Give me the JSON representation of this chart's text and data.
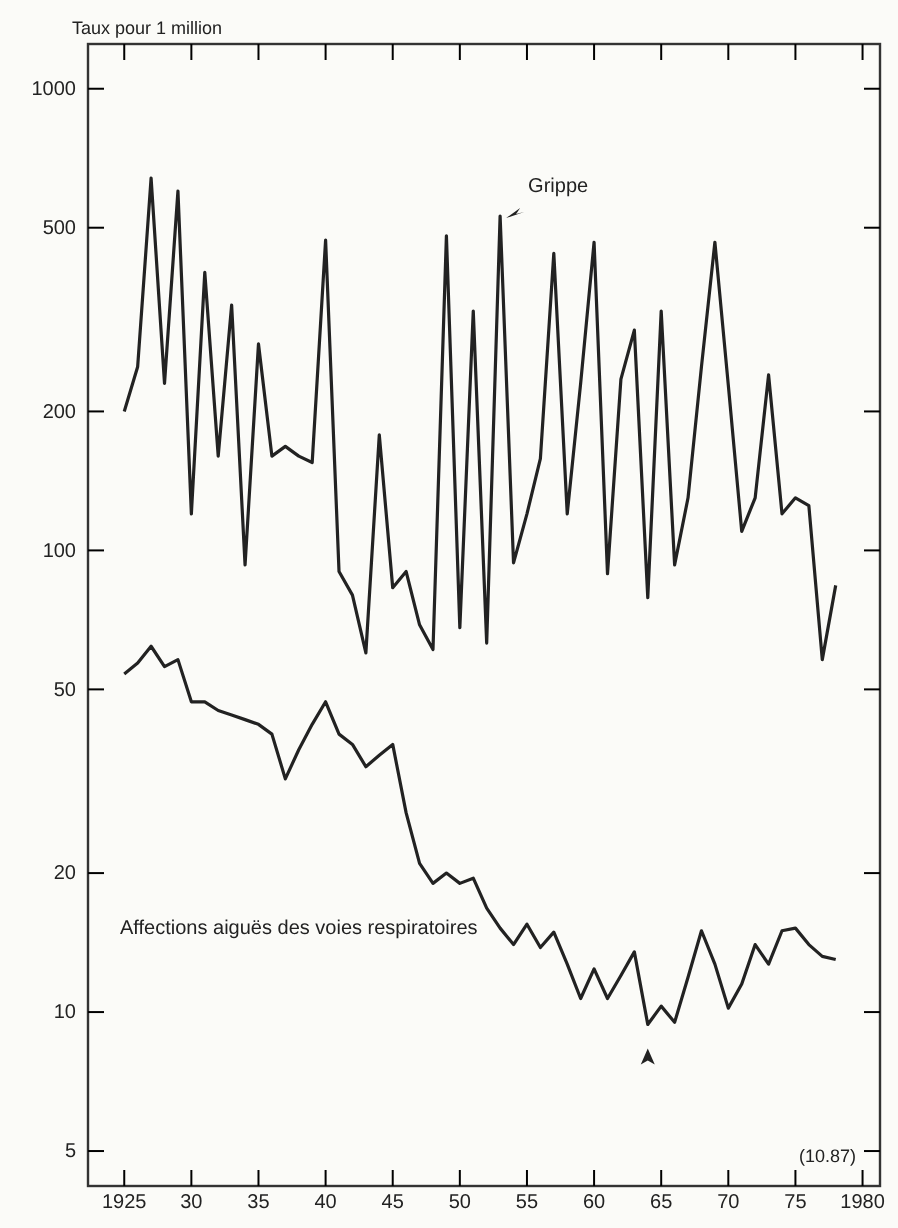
{
  "chart_data": {
    "type": "line",
    "ylabel": "Taux pour 1 million",
    "log": true,
    "x": [
      1925,
      1926,
      1927,
      1928,
      1929,
      1930,
      1931,
      1932,
      1933,
      1934,
      1935,
      1936,
      1937,
      1938,
      1939,
      1940,
      1941,
      1942,
      1943,
      1944,
      1945,
      1946,
      1947,
      1948,
      1949,
      1950,
      1951,
      1952,
      1953,
      1954,
      1955,
      1956,
      1957,
      1958,
      1959,
      1960,
      1961,
      1962,
      1963,
      1964,
      1965,
      1966,
      1967,
      1968,
      1969,
      1970,
      1971,
      1972,
      1973,
      1974,
      1975,
      1976,
      1977,
      1978
    ],
    "series": [
      {
        "name": "Grippe",
        "color": "#222222",
        "values": [
          200,
          250,
          640,
          230,
          600,
          120,
          400,
          160,
          340,
          93,
          280,
          160,
          168,
          160,
          155,
          470,
          90,
          80,
          60,
          178,
          83,
          90,
          69,
          61,
          480,
          68,
          330,
          63,
          530,
          94,
          120,
          158,
          440,
          120,
          230,
          465,
          89,
          235,
          300,
          79,
          330,
          93,
          130,
          250,
          465,
          228,
          110,
          130,
          240,
          120,
          130,
          125,
          58,
          84
        ]
      },
      {
        "name": "Affections aiguës des voies respiratoires",
        "color": "#222222",
        "values": [
          54,
          57,
          62,
          56,
          58,
          47,
          47,
          45,
          44,
          43,
          42,
          40,
          32,
          37,
          42,
          47,
          40,
          38,
          34,
          36,
          38,
          27,
          21,
          19,
          20,
          19,
          19.5,
          16.8,
          15.2,
          14,
          15.5,
          13.8,
          14.9,
          12.7,
          10.7,
          12.4,
          10.7,
          12,
          13.5,
          9.4,
          10.3,
          9.5,
          11.9,
          15,
          12.7,
          10.2,
          11.5,
          14,
          12.7,
          15,
          15.2,
          14,
          13.2,
          13
        ]
      }
    ],
    "xlim": [
      1922.3,
      1981.3
    ],
    "ylim": [
      4.2,
      1250
    ],
    "xticks": [
      1925,
      {
        "value": 1930,
        "label": "30"
      },
      {
        "value": 1935,
        "label": "35"
      },
      {
        "value": 1940,
        "label": "40"
      },
      {
        "value": 1945,
        "label": "45"
      },
      {
        "value": 1950,
        "label": "50"
      },
      {
        "value": 1955,
        "label": "55"
      },
      {
        "value": 1960,
        "label": "60"
      },
      {
        "value": 1965,
        "label": "65"
      },
      {
        "value": 1970,
        "label": "70"
      },
      {
        "value": 1975,
        "label": "75"
      },
      1980
    ],
    "yticks": [
      5,
      10,
      20,
      50,
      100,
      200,
      500,
      1000
    ],
    "grid": false,
    "marker": "none",
    "line_style": "solid",
    "annotations": [
      "(10.87)"
    ]
  }
}
